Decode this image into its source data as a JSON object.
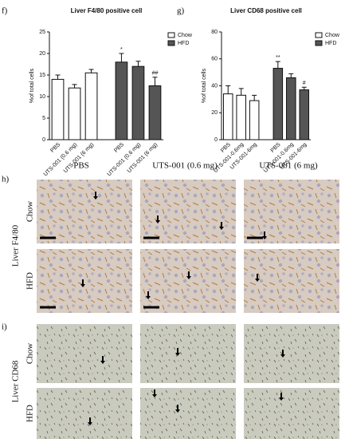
{
  "chart_data": [
    {
      "type": "bar",
      "panel_label": "f)",
      "title": "Liver F4/80 positive cell",
      "ylabel": "%of total cells",
      "categories": [
        "PBS",
        "UTS-001 (0.6 mg)",
        "UTS-001 (6 mg)",
        "PBS",
        "UTS-001 (0.6 mg)",
        "UTS-001 (6 mg)"
      ],
      "series": [
        {
          "name": "Chow",
          "color": "#ffffff",
          "values": [
            14,
            12,
            15.5,
            null,
            null,
            null
          ],
          "errors": [
            1,
            0.8,
            0.8,
            null,
            null,
            null
          ],
          "annotations": [
            null,
            null,
            null,
            null,
            null,
            null
          ]
        },
        {
          "name": "HFD",
          "color": "#555555",
          "values": [
            null,
            null,
            null,
            18,
            17,
            12.5
          ],
          "errors": [
            null,
            null,
            null,
            2,
            1.2,
            2
          ],
          "annotations": [
            null,
            null,
            null,
            "*",
            null,
            "##"
          ]
        }
      ],
      "ylim": [
        0,
        25
      ],
      "yticks": [
        0,
        5,
        10,
        15,
        20,
        25
      ],
      "grid": false,
      "legend": "right"
    },
    {
      "type": "bar",
      "panel_label": "g)",
      "title": "Liver CD68 positive cell",
      "ylabel": "%of total cells",
      "categories": [
        "PBS",
        "UTS-001-0.6mg",
        "UTS-001-6mg",
        "PBS",
        "UTS-001-0.6mg",
        "UTS-001-6mg"
      ],
      "series": [
        {
          "name": "Chow",
          "color": "#ffffff",
          "values": [
            34,
            33,
            29,
            null,
            null,
            null
          ],
          "errors": [
            6,
            5,
            4,
            null,
            null,
            null
          ],
          "annotations": [
            null,
            null,
            null,
            null,
            null,
            null
          ]
        },
        {
          "name": "HFD",
          "color": "#555555",
          "values": [
            null,
            null,
            null,
            53,
            46,
            37
          ],
          "errors": [
            null,
            null,
            null,
            5,
            3,
            2
          ],
          "annotations": [
            null,
            null,
            null,
            "**",
            null,
            "#"
          ]
        }
      ],
      "ylim": [
        0,
        80
      ],
      "yticks": [
        0,
        20,
        40,
        60,
        80
      ],
      "grid": false,
      "legend": "right"
    }
  ],
  "micrographs": {
    "panel_h": "h)",
    "panel_i": "i)",
    "columns": [
      "PBS",
      "UTS-001 (0.6 mg)",
      "UTS-001 (6 mg)"
    ],
    "rows": [
      "Chow",
      "HFD"
    ],
    "stain_h": "Liver F4/80",
    "stain_i": "Liver CD68"
  }
}
